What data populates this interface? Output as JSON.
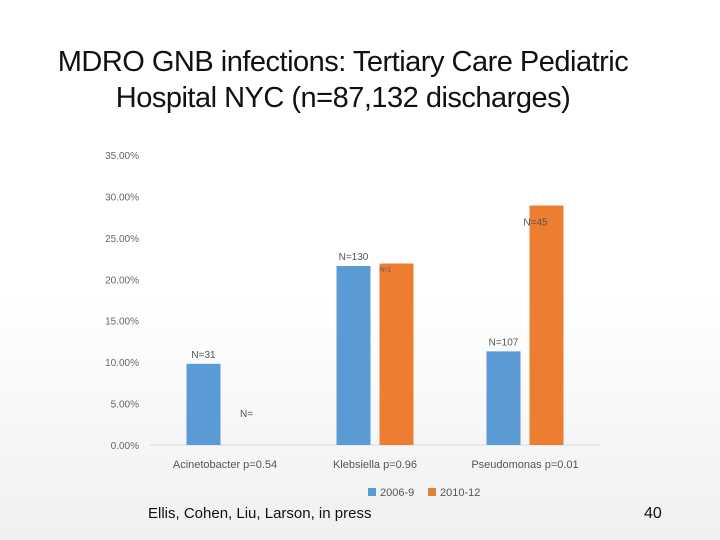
{
  "slide": {
    "title_line1": "MDRO GNB infections: Tertiary Care Pediatric",
    "title_line2": "Hospital NYC (n=87,132 discharges)",
    "footer": "Ellis, Cohen, Liu, Larson, in press",
    "page_number": "40"
  },
  "chart_data": {
    "type": "bar",
    "categories": [
      "Acinetobacter p=0.54",
      "Klebsiella p=0.96",
      "Pseudomonas p=0.01"
    ],
    "series": [
      {
        "name": "2006-9",
        "color": "#5b9bd5",
        "values": [
          9.8,
          21.6,
          11.3
        ]
      },
      {
        "name": "2010-12",
        "color": "#ed7d31",
        "values": [
          0,
          21.9,
          28.9
        ]
      }
    ],
    "data_labels": [
      [
        "N=31",
        "N=130",
        "N=107"
      ],
      [
        "N=",
        "N=1",
        "N=45"
      ]
    ],
    "ylim": [
      0,
      35
    ],
    "yticks": [
      "0.00%",
      "5.00%",
      "10.00%",
      "15.00%",
      "20.00%",
      "25.00%",
      "30.00%",
      "35.00%"
    ],
    "ytick_values": [
      0,
      5,
      10,
      15,
      20,
      25,
      30,
      35
    ],
    "legend_position": "bottom",
    "grid": false
  }
}
